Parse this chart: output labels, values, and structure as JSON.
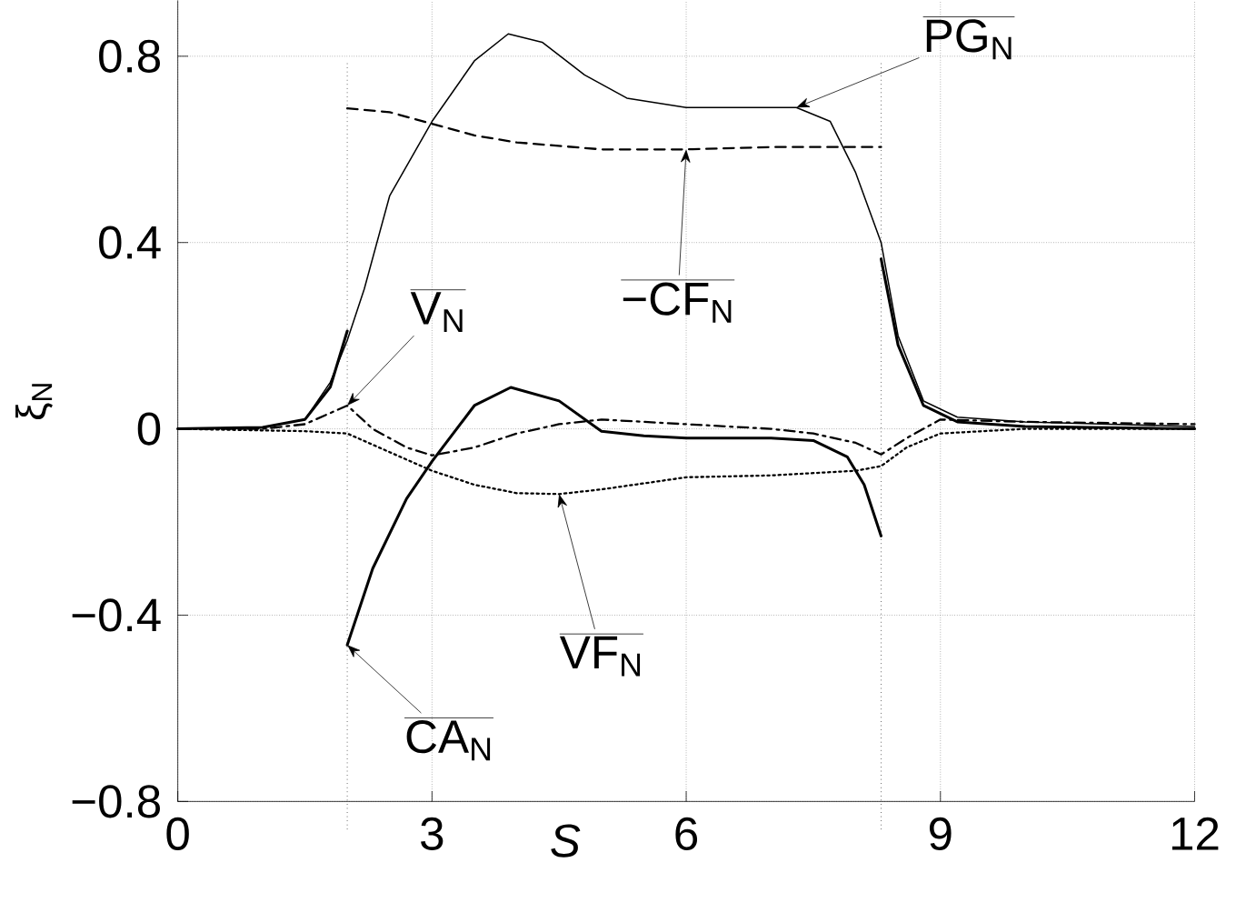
{
  "chart_data": {
    "type": "line",
    "xlabel": "*S*",
    "ylabel": "ξ$_{N}$",
    "xlim": [
      0,
      12
    ],
    "ylim": [
      -0.8,
      0.92
    ],
    "xticks": [
      0,
      3,
      6,
      9,
      12
    ],
    "yticks": [
      {
        "value": -0.8,
        "label": "−0.8"
      },
      {
        "value": -0.4,
        "label": "−0.4"
      },
      0,
      0.4,
      0.8
    ],
    "grid": true,
    "ref_lines": [
      {
        "axis": "x",
        "value": 2,
        "line_style": "dotted",
        "color": "#000000"
      },
      {
        "axis": "x",
        "value": 8.3,
        "line_style": "dotted",
        "color": "#000000"
      }
    ],
    "annotations": [
      {
        "text": "PG$_{N}$",
        "x": 7.3,
        "y": 0.69
      },
      {
        "text": "−CF$_{N}$",
        "x": 6,
        "y": 0.6
      },
      {
        "text": "V$_{N}$",
        "x": 2,
        "y": 0.05
      },
      {
        "text": "VF$_{N}$",
        "x": 4.5,
        "y": -0.14
      },
      {
        "text": "CA$_{N}$",
        "x": 2,
        "y": -0.464
      }
    ],
    "series": [
      {
        "color": "#000000",
        "line_style": "solid",
        "x": [
          0,
          1,
          1.5,
          1.8,
          2,
          2.2,
          2.5,
          3,
          3.5,
          3.9,
          4.3,
          4.8,
          5.3,
          6,
          7,
          7.3,
          7.7,
          8,
          8.3,
          8.5,
          8.8,
          9.2,
          10,
          11,
          12
        ],
        "values": [
          0,
          0.003,
          0.02,
          0.1,
          0.19,
          0.3,
          0.5,
          0.66,
          0.79,
          0.848,
          0.83,
          0.76,
          0.71,
          0.69,
          0.69,
          0.69,
          0.66,
          0.55,
          0.4,
          0.2,
          0.06,
          0.025,
          0.015,
          0.01,
          0.005
        ]
      },
      {
        "color": "#000000",
        "line_style": "dashed",
        "x": [
          2,
          2.5,
          3,
          3.5,
          4,
          5,
          6,
          7,
          8.3
        ],
        "values": [
          0.688,
          0.68,
          0.655,
          0.63,
          0.615,
          0.6,
          0.6,
          0.605,
          0.605
        ]
      },
      {
        "color": "#000000",
        "line_style": "dashdot",
        "x": [
          0,
          1,
          1.5,
          2,
          2.3,
          2.7,
          3,
          3.5,
          4,
          4.5,
          5,
          6,
          7,
          7.5,
          8,
          8.3,
          8.6,
          9,
          10,
          12
        ],
        "values": [
          0,
          0,
          0.01,
          0.05,
          0,
          -0.04,
          -0.057,
          -0.04,
          -0.01,
          0.01,
          0.02,
          0.01,
          0,
          -0.01,
          -0.03,
          -0.055,
          -0.02,
          0.02,
          0.015,
          0.01
        ]
      },
      {
        "color": "#000000",
        "line_style": "dotted",
        "x": [
          0,
          1.5,
          2,
          2.5,
          3,
          3.5,
          4,
          4.5,
          5,
          6,
          7,
          8,
          8.3,
          8.6,
          9,
          10,
          12
        ],
        "values": [
          0,
          -0.005,
          -0.01,
          -0.05,
          -0.09,
          -0.12,
          -0.138,
          -0.14,
          -0.13,
          -0.104,
          -0.1,
          -0.09,
          -0.08,
          -0.04,
          -0.01,
          0,
          0
        ]
      },
      {
        "color": "#000000",
        "line_style": "solid",
        "x": [
          0,
          1,
          1.5,
          1.8,
          2,
          null,
          2,
          2.3,
          2.7,
          3,
          3.5,
          3.93,
          4.5,
          5,
          5.5,
          6,
          7,
          7.5,
          7.9,
          8.1,
          8.3,
          null,
          8.3,
          8.5,
          8.8,
          9.2,
          10,
          12
        ],
        "values": [
          0,
          0.003,
          0.02,
          0.09,
          0.21,
          null,
          -0.464,
          -0.3,
          -0.15,
          -0.07,
          0.05,
          0.089,
          0.06,
          -0.005,
          -0.015,
          -0.02,
          -0.02,
          -0.025,
          -0.06,
          -0.12,
          -0.23,
          null,
          0.365,
          0.18,
          0.05,
          0.015,
          0.005,
          0
        ]
      }
    ]
  }
}
